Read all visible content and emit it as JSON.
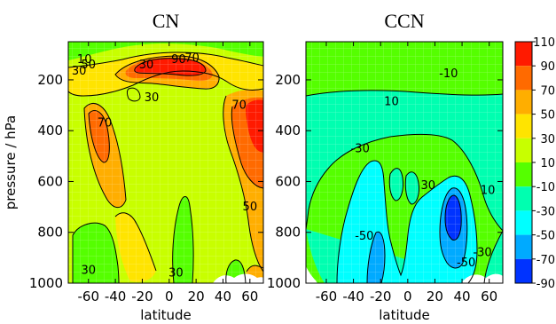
{
  "chart_data": {
    "type": "heatmap",
    "ylabel": "pressure / hPa",
    "ylim": [
      1000,
      50
    ],
    "colorbar": {
      "ticks": [
        "110",
        "90",
        "70",
        "50",
        "30",
        "10",
        "-10",
        "-30",
        "-50",
        "-70",
        "-90"
      ],
      "bands": [
        {
          "from": 90,
          "to": 110,
          "color": "#ff1a00"
        },
        {
          "from": 70,
          "to": 90,
          "color": "#ff6a00"
        },
        {
          "from": 50,
          "to": 70,
          "color": "#ffae00"
        },
        {
          "from": 30,
          "to": 50,
          "color": "#ffe400"
        },
        {
          "from": 10,
          "to": 30,
          "color": "#c8ff00"
        },
        {
          "from": -10,
          "to": 10,
          "color": "#55ff00"
        },
        {
          "from": -30,
          "to": -10,
          "color": "#00ffb0"
        },
        {
          "from": -50,
          "to": -30,
          "color": "#00ffff"
        },
        {
          "from": -70,
          "to": -50,
          "color": "#00aaff"
        },
        {
          "from": -90,
          "to": -70,
          "color": "#0033ff"
        }
      ]
    },
    "panels": [
      {
        "title": "CN",
        "xlabel": "latitude",
        "xlim": [
          -75,
          70
        ],
        "xticks": [
          -60,
          -40,
          -20,
          0,
          20,
          40,
          60
        ],
        "xtick_labels": [
          "-60",
          "-40",
          "-20",
          "0",
          "20",
          "40",
          "60"
        ],
        "yticks": [
          200,
          400,
          600,
          800,
          1000
        ],
        "ytick_labels": [
          "200",
          "400",
          "600",
          "800",
          "1000"
        ],
        "contour_labels": [
          {
            "text": "10",
            "lat": -63,
            "p": 120
          },
          {
            "text": "30",
            "lat": -67,
            "p": 165
          },
          {
            "text": "50",
            "lat": -60,
            "p": 140
          },
          {
            "text": "30",
            "lat": -17,
            "p": 140
          },
          {
            "text": "90",
            "lat": 7,
            "p": 120
          },
          {
            "text": "70",
            "lat": 17,
            "p": 115
          },
          {
            "text": "70",
            "lat": 52,
            "p": 300
          },
          {
            "text": "30",
            "lat": -13,
            "p": 270
          },
          {
            "text": "70",
            "lat": -48,
            "p": 370
          },
          {
            "text": "50",
            "lat": 60,
            "p": 700
          },
          {
            "text": "30",
            "lat": -60,
            "p": 950
          },
          {
            "text": "30",
            "lat": 5,
            "p": 960
          }
        ]
      },
      {
        "title": "CCN",
        "xlabel": "latitude",
        "xlim": [
          -75,
          70
        ],
        "xticks": [
          -60,
          -40,
          -20,
          0,
          20,
          40,
          60
        ],
        "xtick_labels": [
          "-60",
          "-40",
          "-20",
          "0",
          "20",
          "40",
          "60"
        ],
        "yticks": [
          200,
          400,
          600,
          800,
          1000
        ],
        "ytick_labels": [
          "200",
          "400",
          "600",
          "800",
          "1000"
        ],
        "contour_labels": [
          {
            "text": "-10",
            "lat": 30,
            "p": 175
          },
          {
            "text": "10",
            "lat": -12,
            "p": 285
          },
          {
            "text": "-30",
            "lat": -35,
            "p": 470
          },
          {
            "text": "30",
            "lat": 15,
            "p": 615
          },
          {
            "text": "10",
            "lat": 59,
            "p": 635
          },
          {
            "text": "-50",
            "lat": -32,
            "p": 815
          },
          {
            "text": "-30",
            "lat": 55,
            "p": 880
          },
          {
            "text": "-50",
            "lat": 43,
            "p": 920
          }
        ]
      }
    ]
  }
}
